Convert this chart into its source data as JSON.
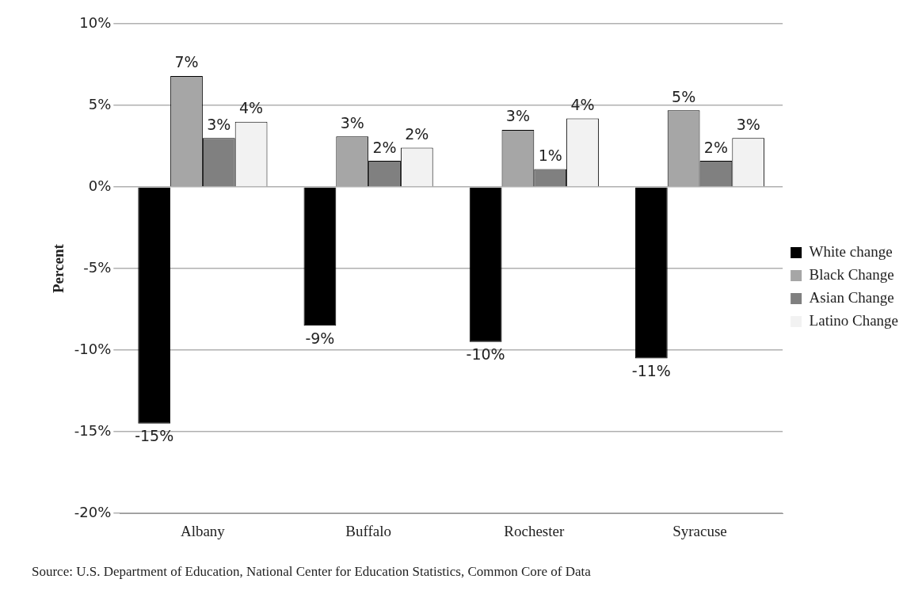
{
  "chart_data": {
    "type": "bar",
    "ylabel": "Percent",
    "categories": [
      "Albany",
      "Buffalo",
      "Rochester",
      "Syracuse"
    ],
    "series": [
      {
        "name": "White change",
        "color": "#000000",
        "values": [
          -14.5,
          -8.5,
          -9.5,
          -10.5
        ],
        "value_labels": [
          "-15%",
          "-9%",
          "-10%",
          "-11%"
        ]
      },
      {
        "name": "Black Change",
        "color": "#a6a6a6",
        "values": [
          6.8,
          3.1,
          3.5,
          4.7
        ],
        "value_labels": [
          "7%",
          "3%",
          "3%",
          "5%"
        ]
      },
      {
        "name": "Asian Change",
        "color": "#808080",
        "values": [
          3.0,
          1.6,
          1.1,
          1.6
        ],
        "value_labels": [
          "3%",
          "2%",
          "1%",
          "2%"
        ]
      },
      {
        "name": "Latino Change",
        "color": "#f2f2f2",
        "values": [
          4.0,
          2.4,
          4.2,
          3.0
        ],
        "value_labels": [
          "4%",
          "2%",
          "4%",
          "3%"
        ]
      }
    ],
    "ylim": [
      -20,
      10
    ],
    "yticks": [
      {
        "value": -20,
        "label": "-20%"
      },
      {
        "value": -15,
        "label": "-15%"
      },
      {
        "value": -10,
        "label": "-10%"
      },
      {
        "value": -5,
        "label": "-5%"
      },
      {
        "value": 0,
        "label": "0%"
      },
      {
        "value": 5,
        "label": "5%"
      },
      {
        "value": 10,
        "label": "10%"
      }
    ],
    "grid": "y",
    "legend": "right",
    "annotations": [
      "Source: U.S. Department of Education, National Center for Education Statistics, Common Core of Data"
    ]
  }
}
